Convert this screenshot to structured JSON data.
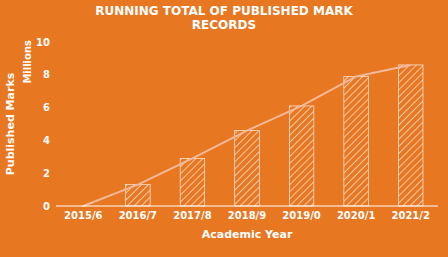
{
  "chart_data": {
    "type": "bar",
    "title": "RUNNING TOTAL OF PUBLISHED MARK\nRECORDS",
    "xlabel": "Academic Year",
    "ylabel": "Published Marks",
    "annotations": [
      "Millions"
    ],
    "categories": [
      "2015/6",
      "2016/7",
      "2017/8",
      "2018/9",
      "2019/0",
      "2020/1",
      "2021/2"
    ],
    "series": [
      {
        "type": "bar",
        "color": "#ffffff",
        "values": [
          0,
          1.3,
          2.9,
          4.6,
          6.1,
          7.9,
          8.6
        ]
      },
      {
        "type": "line",
        "color": "#f5b898",
        "values": [
          0,
          1.3,
          2.9,
          4.6,
          6.1,
          7.9,
          8.6
        ]
      }
    ],
    "ylim": [
      0,
      10
    ],
    "yticks": [
      0,
      2,
      4,
      6,
      8,
      10
    ],
    "grid": false
  }
}
